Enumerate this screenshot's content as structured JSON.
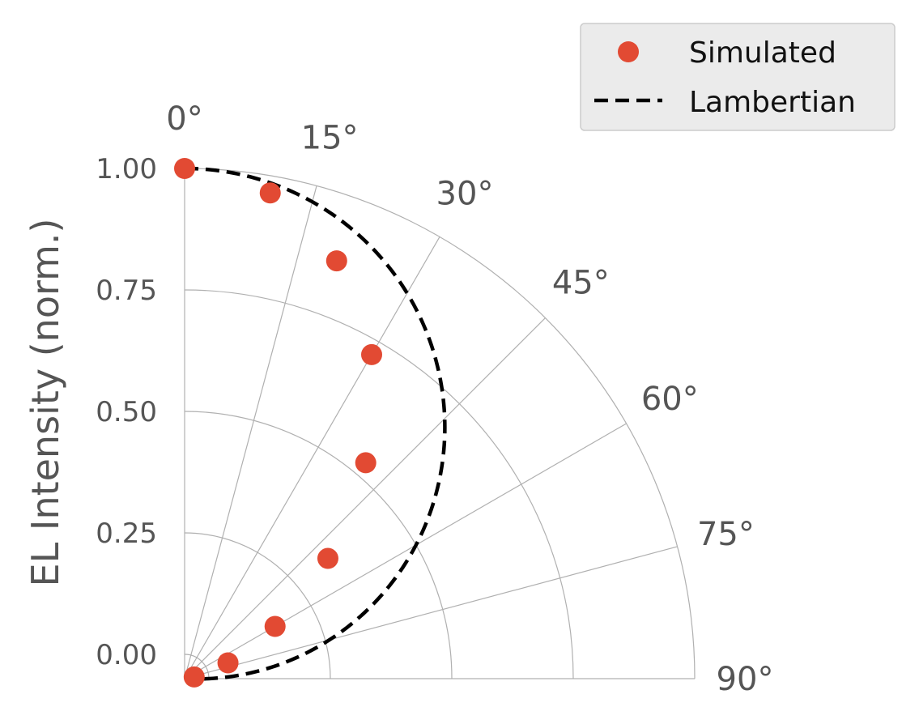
{
  "chart_data": {
    "type": "scatter",
    "projection": "polar-quadrant",
    "ylabel": "EL Intensity (norm.)",
    "angle_unit": "degrees",
    "angle_ticks": [
      "0°",
      "15°",
      "30°",
      "45°",
      "60°",
      "75°",
      "90°"
    ],
    "angle_tick_values": [
      0,
      15,
      30,
      45,
      60,
      75,
      90
    ],
    "r_ticks": [
      "0.00",
      "0.25",
      "0.50",
      "0.75",
      "1.00"
    ],
    "r_tick_values": [
      0.0,
      0.25,
      0.5,
      0.75,
      1.0
    ],
    "rlim": [
      -0.05,
      1.0
    ],
    "grid": true,
    "legend_position": "top-right",
    "series": [
      {
        "name": "Simulated",
        "kind": "scatter",
        "color": "#e24a33",
        "theta": [
          0,
          10,
          20,
          30,
          40,
          50,
          60,
          70,
          80
        ],
        "r": [
          1.0,
          0.965,
          0.865,
          0.72,
          0.53,
          0.335,
          0.165,
          0.045,
          -0.03
        ]
      },
      {
        "name": "Lambertian",
        "kind": "line",
        "style": "dashed",
        "color": "#000000",
        "function": "cos"
      }
    ]
  }
}
